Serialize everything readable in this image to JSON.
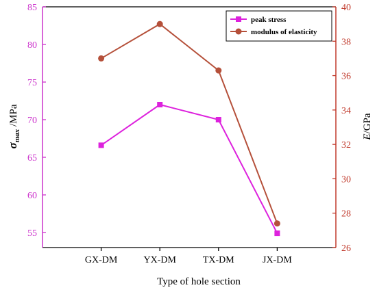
{
  "chart_data": {
    "type": "line",
    "xlabel": "Type of hole section",
    "ylabel_left": {
      "symbol": "σ",
      "subscript": "max",
      "unit": " /MPa"
    },
    "ylabel_right": {
      "symbol": "E",
      "unit": "/GPa"
    },
    "categories": [
      "GX-DM",
      "YX-DM",
      "TX-DM",
      "JX-DM"
    ],
    "ylim_left": [
      53,
      85
    ],
    "ylim_right": [
      26,
      40
    ],
    "yticks_left": [
      55,
      60,
      65,
      70,
      75,
      80,
      85
    ],
    "yticks_right": [
      26,
      28,
      30,
      32,
      34,
      36,
      38,
      40
    ],
    "legend_position": "top-right",
    "series": [
      {
        "name": "peak stress",
        "axis": "left",
        "marker": "square",
        "color": "#dd22dd",
        "values": [
          66.6,
          72.0,
          70.0,
          54.9
        ]
      },
      {
        "name": "modulus of elasticity",
        "axis": "right",
        "marker": "circle",
        "color": "#b5503a",
        "values": [
          37.0,
          39.0,
          36.3,
          27.4
        ]
      }
    ],
    "colors": {
      "left_axis": "#cc33cc",
      "right_axis": "#c0392b",
      "frame": "#000000"
    }
  }
}
